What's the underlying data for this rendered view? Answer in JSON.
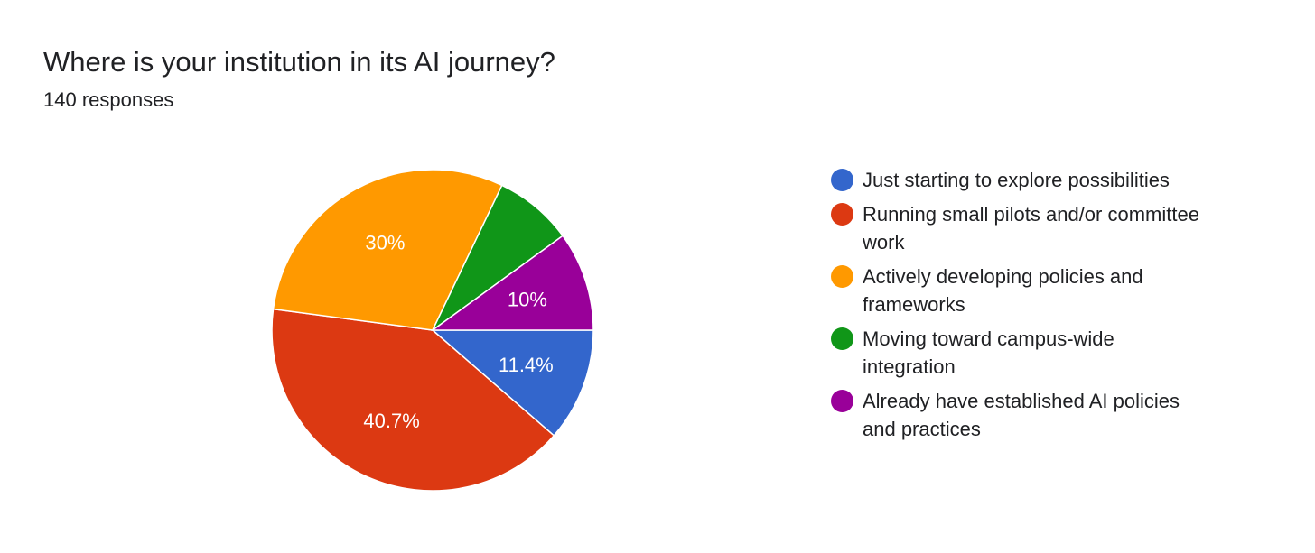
{
  "title": "Where is your institution in its AI journey?",
  "subtitle": "140 responses",
  "chart_data": {
    "type": "pie",
    "title": "Where is your institution in its AI journey?",
    "total_responses": 140,
    "slices": [
      {
        "label": "Just starting to explore possibilities",
        "value": 11.4,
        "display": "11.4%",
        "color": "#3366cc"
      },
      {
        "label": "Running small pilots and/or committee work",
        "value": 40.7,
        "display": "40.7%",
        "color": "#dc3912"
      },
      {
        "label": "Actively developing policies and frameworks",
        "value": 30.0,
        "display": "30%",
        "color": "#ff9900"
      },
      {
        "label": "Moving toward campus-wide integration",
        "value": 7.9,
        "display": "",
        "color": "#109618"
      },
      {
        "label": "Already have established AI policies and practices",
        "value": 10.0,
        "display": "10%",
        "color": "#990099"
      }
    ],
    "legend_position": "right",
    "slice_order": "clockwise from 3 o'clock"
  }
}
